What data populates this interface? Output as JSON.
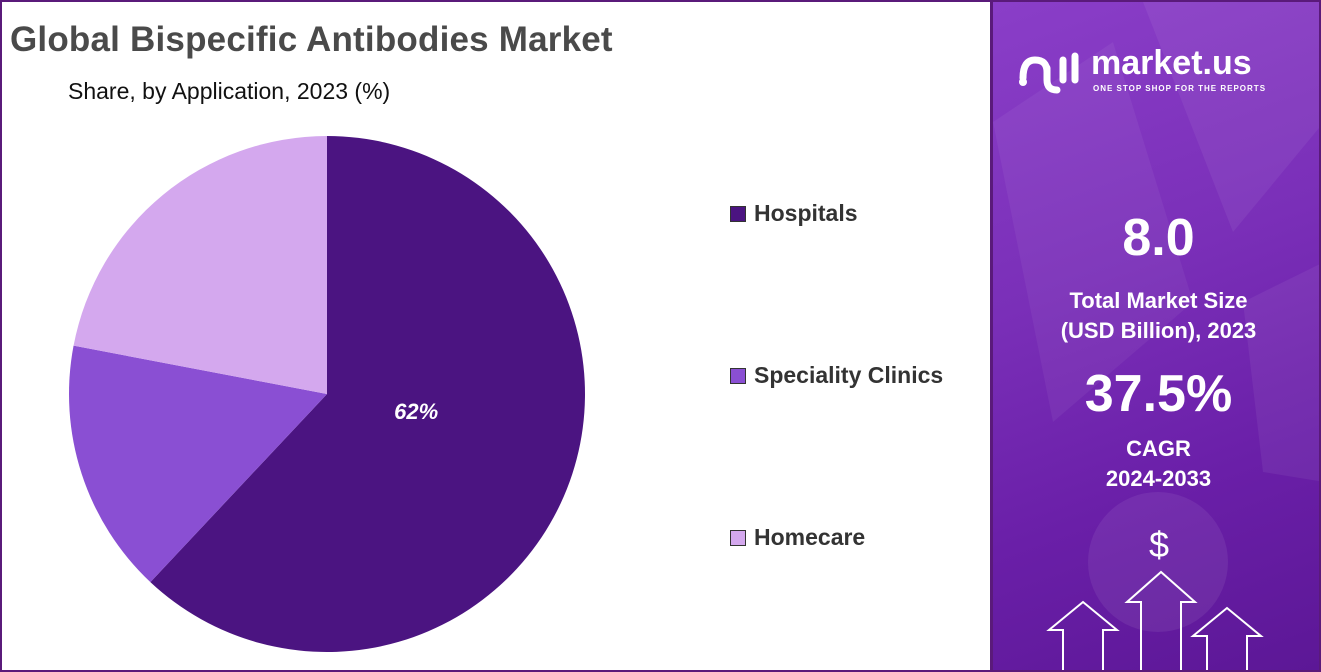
{
  "chart_data": {
    "type": "pie",
    "title": "Global Bispecific Antibodies Market",
    "subtitle": "Share, by Application, 2023 (%)",
    "categories": [
      "Hospitals",
      "Speciality Clinics",
      "Homecare"
    ],
    "values": [
      62,
      16,
      22
    ],
    "data_labels": [
      "62%",
      "",
      ""
    ],
    "colors": [
      "#4b1481",
      "#8a4fd3",
      "#d4a8ee"
    ],
    "legend_position": "right"
  },
  "panel": {
    "logo_text": "market.us",
    "logo_tagline": "ONE STOP SHOP FOR THE REPORTS",
    "market_size_value": "8.0",
    "market_size_label_line1": "Total Market Size",
    "market_size_label_line2": "(USD Billion), 2023",
    "cagr_value": "37.5%",
    "cagr_label": "CAGR",
    "cagr_period": "2024-2033",
    "currency_symbol": "$"
  }
}
